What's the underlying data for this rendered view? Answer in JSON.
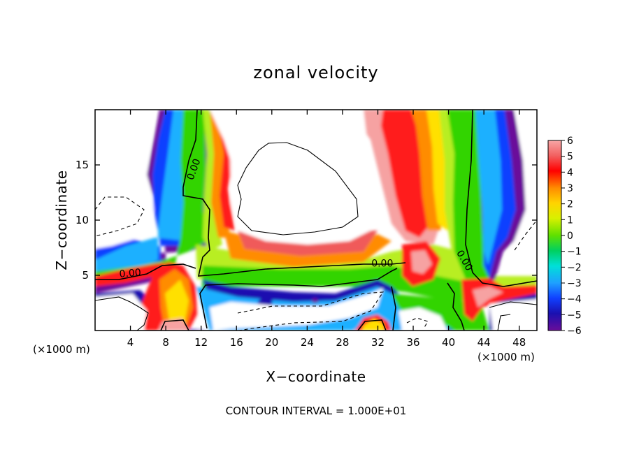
{
  "chart_data": {
    "type": "heatmap",
    "title": "zonal velocity",
    "xlabel": "X−coordinate",
    "ylabel": "Z−coordinate",
    "x_unit_left": "(×1000 m)",
    "x_unit_right": "(×1000 m)",
    "footer": "CONTOUR INTERVAL = 1.000E+01",
    "xlim": [
      0,
      50
    ],
    "ylim": [
      0,
      20
    ],
    "xticks": [
      4,
      8,
      12,
      16,
      20,
      24,
      28,
      32,
      36,
      40,
      44,
      48
    ],
    "xtick_labels": [
      "4",
      "8",
      "12",
      "16",
      "20",
      "24",
      "28",
      "32",
      "36",
      "40",
      "44",
      "48"
    ],
    "yticks": [
      5,
      10,
      15
    ],
    "ytick_labels": [
      "5",
      "10",
      "15"
    ],
    "colorbar": {
      "ticks": [
        6,
        5,
        4,
        3,
        2,
        1,
        0,
        -1,
        -2,
        -3,
        -4,
        -5,
        -6
      ],
      "tick_labels": [
        "6",
        "5",
        "4",
        "3",
        "2",
        "1",
        "0",
        "−1",
        "−2",
        "−3",
        "−4",
        "−5",
        "−6"
      ],
      "range": [
        -6,
        6
      ]
    },
    "contour_labels": [
      {
        "text": "0.00",
        "x": 11.5,
        "z": 14.5,
        "angle": -70
      },
      {
        "text": "0.00",
        "x": 4.0,
        "z": 4.9,
        "angle": -5
      },
      {
        "text": "0.00",
        "x": 32.5,
        "z": 5.8,
        "angle": 0
      },
      {
        "text": "0.00",
        "x": 41.5,
        "z": 6.2,
        "angle": 60
      }
    ]
  }
}
